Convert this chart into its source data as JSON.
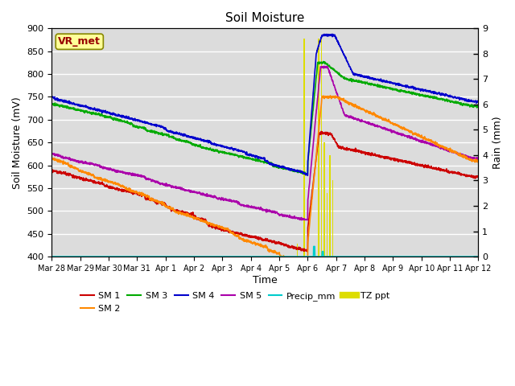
{
  "title": "Soil Moisture",
  "xlabel": "Time",
  "ylabel_left": "Soil Moisture (mV)",
  "ylabel_right": "Rain (mm)",
  "ylim_left": [
    400,
    900
  ],
  "ylim_right": [
    0.0,
    9.0
  ],
  "yticks_left": [
    400,
    450,
    500,
    550,
    600,
    650,
    700,
    750,
    800,
    850,
    900
  ],
  "yticks_right": [
    0.0,
    1.0,
    2.0,
    3.0,
    4.0,
    5.0,
    6.0,
    7.0,
    8.0,
    9.0
  ],
  "bg_color": "#dcdcdc",
  "fig_color": "#ffffff",
  "annotation_text": "VR_met",
  "annotation_color": "#990000",
  "annotation_bg": "#ffff99",
  "colors": {
    "SM1": "#cc0000",
    "SM2": "#ff8800",
    "SM3": "#00aa00",
    "SM4": "#0000cc",
    "SM5": "#aa00aa",
    "Precip_mm": "#00cccc",
    "TZ_ppt": "#dddd00"
  },
  "x_tick_labels": [
    "Mar 28",
    "Mar 29",
    "Mar 30",
    "Mar 31",
    "Apr 1",
    "Apr 2",
    "Apr 3",
    "Apr 4",
    "Apr 5",
    "Apr 6",
    "Apr 7",
    "Apr 8",
    "Apr 9",
    "Apr 10",
    "Apr 11",
    "Apr 12"
  ]
}
